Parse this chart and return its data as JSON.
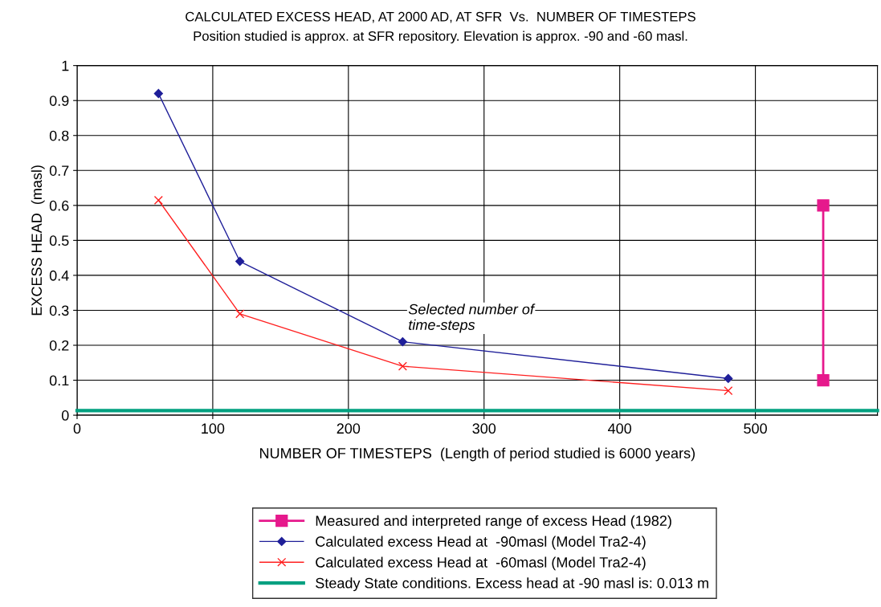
{
  "chart_data": {
    "type": "line",
    "title": "CALCULATED EXCESS HEAD, AT 2000 AD, AT SFR  Vs.  NUMBER OF TIMESTEPS",
    "subtitle": "Position studied is approx. at SFR repository. Elevation is approx. -90 and -60 masl.",
    "xlabel": "NUMBER OF TIMESTEPS  (Length of period studied is 6000 years)",
    "ylabel": "EXCESS HEAD  (masl)",
    "xlim": [
      0,
      590
    ],
    "ylim": [
      0,
      1
    ],
    "xticks": [
      0,
      100,
      200,
      300,
      400,
      500
    ],
    "yticks": [
      0,
      0.1,
      0.2,
      0.3,
      0.4,
      0.5,
      0.6,
      0.7,
      0.8,
      0.9,
      1
    ],
    "grid": true,
    "legend": "bottom",
    "annotations": [
      {
        "text": "Selected number of\ntime-steps",
        "x": 240,
        "y": 0.21
      }
    ],
    "series": [
      {
        "name": "Measured and interpreted range of excess Head (1982)",
        "color": "#e6198c",
        "x": [
          550,
          550
        ],
        "values": [
          0.6,
          0.1
        ],
        "marker": "square"
      },
      {
        "name": "Calculated excess Head at  -90masl (Model Tra2-4)",
        "color": "#1f1f99",
        "x": [
          60,
          120,
          240,
          480
        ],
        "values": [
          0.92,
          0.44,
          0.21,
          0.105
        ],
        "marker": "diamond"
      },
      {
        "name": "Calculated excess Head at  -60masl (Model Tra2-4)",
        "color": "#ff2020",
        "x": [
          60,
          120,
          240,
          480
        ],
        "values": [
          0.615,
          0.29,
          0.14,
          0.07
        ],
        "marker": "cross"
      },
      {
        "name": "Steady State conditions. Excess head at -90 masl is: 0.013 m",
        "color": "#00a080",
        "x": [
          0,
          590
        ],
        "values": [
          0.013,
          0.013
        ],
        "marker": "none"
      }
    ]
  }
}
